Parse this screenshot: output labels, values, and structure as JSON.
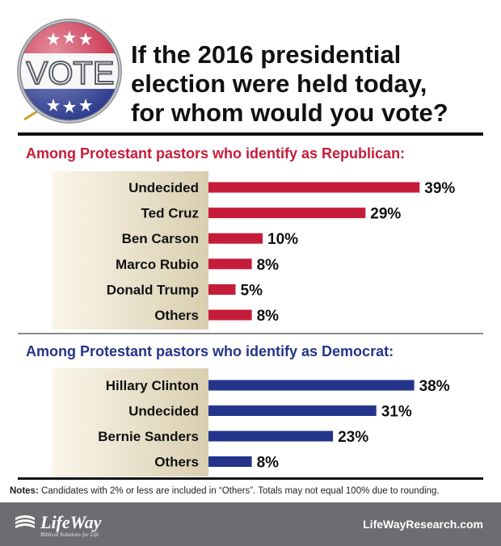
{
  "badge": {
    "label": "VOTE"
  },
  "title": {
    "lines": [
      "If the 2016 presidential",
      "election were held today,",
      "for whom would you vote?"
    ]
  },
  "chart_data": [
    {
      "type": "bar",
      "orientation": "horizontal",
      "title": "Among Protestant pastors who identify as Republican:",
      "categories": [
        "Undecided",
        "Ted Cruz",
        "Ben Carson",
        "Marco Rubio",
        "Donald Trump",
        "Others"
      ],
      "values": [
        39,
        29,
        10,
        8,
        5,
        8
      ],
      "value_labels": [
        "39%",
        "29%",
        "10%",
        "8%",
        "5%",
        "8%"
      ],
      "unit": "%",
      "color": "#c51c3a"
    },
    {
      "type": "bar",
      "orientation": "horizontal",
      "title": "Among Protestant pastors who identify as Democrat:",
      "categories": [
        "Hillary Clinton",
        "Undecided",
        "Bernie Sanders",
        "Others"
      ],
      "values": [
        38,
        31,
        23,
        8
      ],
      "value_labels": [
        "38%",
        "31%",
        "23%",
        "8%"
      ],
      "unit": "%",
      "color": "#24348a"
    }
  ],
  "notes": {
    "label": "Notes:",
    "text": " Candidates with 2% or less are included in “Others”. Totals may not equal 100% due to rounding."
  },
  "footer": {
    "brand": "LifeWay",
    "tagline": "Biblical Solutions for Life",
    "site": "LifeWayResearch.com"
  },
  "colors": {
    "republican": "#c51c3a",
    "democrat": "#24348a",
    "panel_gradient_start": "#fbf6ea",
    "panel_gradient_end": "#d9ceb0",
    "footer": "#6b6d70"
  }
}
